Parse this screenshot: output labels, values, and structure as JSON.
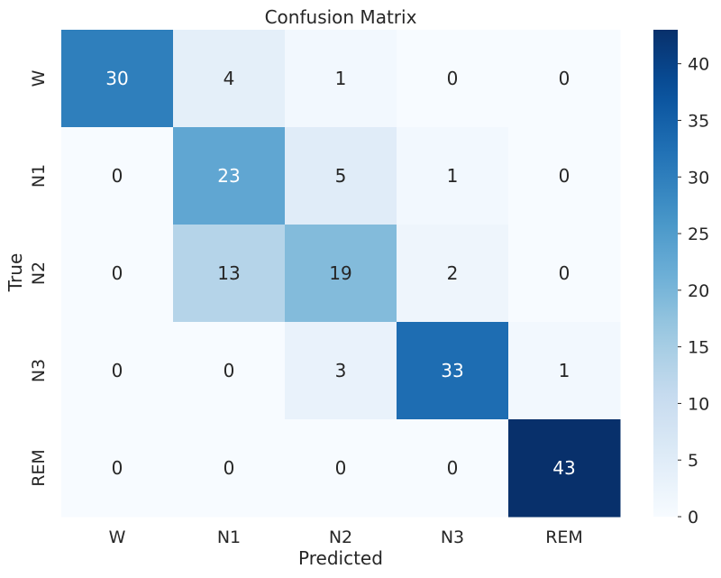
{
  "chart_data": {
    "type": "heatmap",
    "title": "Confusion Matrix",
    "xlabel": "Predicted",
    "ylabel": "True",
    "x_categories": [
      "W",
      "N1",
      "N2",
      "N3",
      "REM"
    ],
    "y_categories": [
      "W",
      "N1",
      "N2",
      "N3",
      "REM"
    ],
    "values": [
      [
        30,
        4,
        1,
        0,
        0
      ],
      [
        0,
        23,
        5,
        1,
        0
      ],
      [
        0,
        13,
        19,
        2,
        0
      ],
      [
        0,
        0,
        3,
        33,
        1
      ],
      [
        0,
        0,
        0,
        0,
        43
      ]
    ],
    "colormap": "Blues",
    "vmin": 0,
    "vmax": 43,
    "colorbar_ticks": [
      0,
      5,
      10,
      15,
      20,
      25,
      30,
      35,
      40
    ],
    "colors": {
      "low": "#f7fbff",
      "high": "#08306b",
      "text_dark": "#262626",
      "text_light": "#ffffff"
    }
  }
}
